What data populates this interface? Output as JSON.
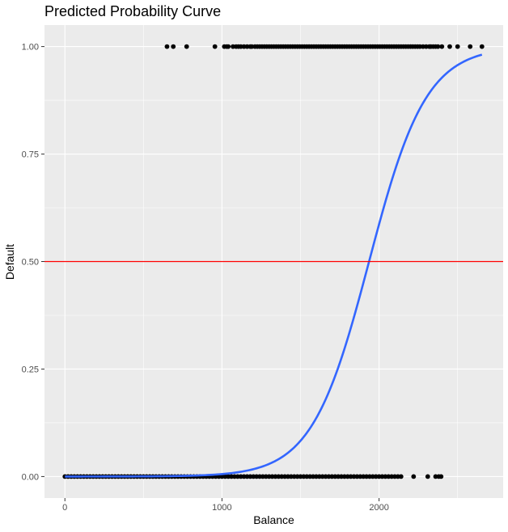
{
  "chart_data": {
    "type": "scatter",
    "title": "Predicted Probability Curve",
    "xlabel": "Balance",
    "ylabel": "Default",
    "xlim": [
      -130,
      2790
    ],
    "ylim": [
      -0.05,
      1.05
    ],
    "x_ticks": [
      0,
      1000,
      2000
    ],
    "x_tick_labels": [
      "0",
      "1000",
      "2000"
    ],
    "y_ticks": [
      0,
      0.25,
      0.5,
      0.75,
      1.0
    ],
    "y_tick_labels": [
      "0.00",
      "0.25",
      "0.50",
      "0.75",
      "1.00"
    ],
    "grid": true,
    "series": [
      {
        "kind": "points",
        "y": 1,
        "x": [
          650,
          690,
          775,
          955,
          1015,
          1030,
          1040,
          1070,
          1090,
          1105,
          1120,
          1140,
          1160,
          1180,
          1190,
          1210,
          1225,
          1240,
          1255,
          1270,
          1285,
          1300,
          1315,
          1330,
          1345,
          1360,
          1375,
          1390,
          1405,
          1420,
          1435,
          1450,
          1465,
          1480,
          1495,
          1510,
          1525,
          1540,
          1555,
          1570,
          1585,
          1600,
          1615,
          1630,
          1645,
          1660,
          1675,
          1690,
          1705,
          1720,
          1735,
          1750,
          1765,
          1780,
          1795,
          1810,
          1825,
          1840,
          1855,
          1870,
          1885,
          1900,
          1915,
          1930,
          1945,
          1960,
          1975,
          1990,
          2005,
          2020,
          2035,
          2050,
          2065,
          2080,
          2095,
          2110,
          2125,
          2140,
          2155,
          2170,
          2185,
          2200,
          2215,
          2230,
          2245,
          2260,
          2280,
          2300,
          2320,
          2330,
          2345,
          2360,
          2375,
          2400,
          2450,
          2500,
          2580,
          2655
        ],
        "color": "#000000"
      },
      {
        "kind": "points",
        "y": 0,
        "x": [
          0,
          20,
          40,
          60,
          80,
          100,
          120,
          140,
          160,
          180,
          200,
          220,
          240,
          260,
          280,
          300,
          320,
          340,
          360,
          380,
          400,
          420,
          440,
          460,
          480,
          500,
          520,
          540,
          560,
          580,
          600,
          620,
          640,
          660,
          680,
          700,
          720,
          740,
          760,
          780,
          800,
          820,
          840,
          860,
          880,
          900,
          920,
          940,
          960,
          980,
          1000,
          1020,
          1040,
          1060,
          1080,
          1100,
          1120,
          1140,
          1160,
          1180,
          1200,
          1220,
          1240,
          1260,
          1280,
          1300,
          1320,
          1340,
          1360,
          1380,
          1400,
          1420,
          1440,
          1460,
          1480,
          1500,
          1520,
          1540,
          1560,
          1580,
          1600,
          1620,
          1640,
          1660,
          1680,
          1700,
          1720,
          1740,
          1760,
          1780,
          1800,
          1820,
          1840,
          1860,
          1880,
          1900,
          1920,
          1940,
          1960,
          1980,
          2000,
          2020,
          2040,
          2060,
          2080,
          2100,
          2120,
          2140,
          2220,
          2310,
          2360,
          2380,
          2395
        ],
        "color": "#000000"
      },
      {
        "kind": "logistic_curve",
        "intercept": -10.65,
        "slope": 0.0055,
        "x_range": [
          0,
          2655
        ],
        "color": "#3366ff"
      },
      {
        "kind": "hline",
        "y": 0.5,
        "color": "#ff0000"
      }
    ]
  }
}
